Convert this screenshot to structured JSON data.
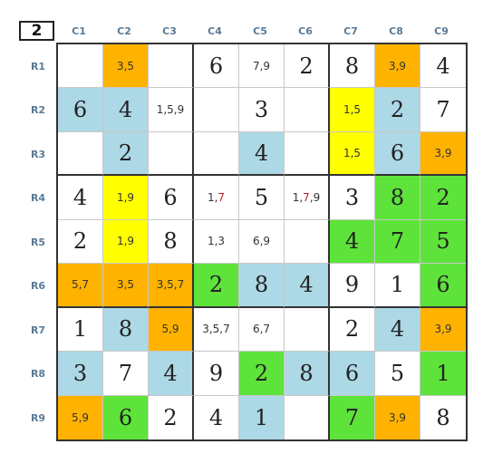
{
  "corner_label": "2",
  "columns": [
    "C1",
    "C2",
    "C3",
    "C4",
    "C5",
    "C6",
    "C7",
    "C8",
    "C9"
  ],
  "rows": [
    "R1",
    "R2",
    "R3",
    "R4",
    "R5",
    "R6",
    "R7",
    "R8",
    "R9"
  ],
  "colors": {
    "orange": "#ffb300",
    "yellow": "#ffff00",
    "blue": "#add8e6",
    "green": "#5de33a",
    "white": "#ffffff",
    "highlight_digit": "#cc1a1a"
  },
  "cells": [
    [
      {
        "c": "",
        "bg": "white"
      },
      {
        "c": "3,5",
        "bg": "orange"
      },
      {
        "c": "",
        "bg": "white"
      },
      {
        "v": "6",
        "bg": "white"
      },
      {
        "c": "7,9",
        "bg": "white"
      },
      {
        "v": "2",
        "bg": "white"
      },
      {
        "v": "8",
        "bg": "white"
      },
      {
        "c": "3,9",
        "bg": "orange"
      },
      {
        "v": "4",
        "bg": "white"
      }
    ],
    [
      {
        "v": "6",
        "bg": "blue"
      },
      {
        "v": "4",
        "bg": "blue"
      },
      {
        "c": "1,5,9",
        "bg": "white"
      },
      {
        "c": "",
        "bg": "white"
      },
      {
        "v": "3",
        "bg": "white"
      },
      {
        "c": "",
        "bg": "white"
      },
      {
        "c": "1,5",
        "bg": "yellow"
      },
      {
        "v": "2",
        "bg": "blue"
      },
      {
        "v": "7",
        "bg": "white"
      }
    ],
    [
      {
        "c": "",
        "bg": "white"
      },
      {
        "v": "2",
        "bg": "blue"
      },
      {
        "c": "",
        "bg": "white"
      },
      {
        "c": "",
        "bg": "white"
      },
      {
        "v": "4",
        "bg": "blue"
      },
      {
        "c": "",
        "bg": "white"
      },
      {
        "c": "1,5",
        "bg": "yellow"
      },
      {
        "v": "6",
        "bg": "blue"
      },
      {
        "c": "3,9",
        "bg": "orange"
      }
    ],
    [
      {
        "v": "4",
        "bg": "white"
      },
      {
        "c": "1,9",
        "bg": "yellow"
      },
      {
        "v": "6",
        "bg": "white"
      },
      {
        "c": "1,7",
        "bg": "white",
        "red": "7"
      },
      {
        "v": "5",
        "bg": "white"
      },
      {
        "c": "1,7,9",
        "bg": "white",
        "red": "7"
      },
      {
        "v": "3",
        "bg": "white"
      },
      {
        "v": "8",
        "bg": "green"
      },
      {
        "v": "2",
        "bg": "green"
      }
    ],
    [
      {
        "v": "2",
        "bg": "white"
      },
      {
        "c": "1,9",
        "bg": "yellow"
      },
      {
        "v": "8",
        "bg": "white"
      },
      {
        "c": "1,3",
        "bg": "white"
      },
      {
        "c": "6,9",
        "bg": "white"
      },
      {
        "c": "",
        "bg": "white"
      },
      {
        "v": "4",
        "bg": "green"
      },
      {
        "v": "7",
        "bg": "green"
      },
      {
        "v": "5",
        "bg": "green"
      }
    ],
    [
      {
        "c": "5,7",
        "bg": "orange"
      },
      {
        "c": "3,5",
        "bg": "orange"
      },
      {
        "c": "3,5,7",
        "bg": "orange"
      },
      {
        "v": "2",
        "bg": "green"
      },
      {
        "v": "8",
        "bg": "blue"
      },
      {
        "v": "4",
        "bg": "blue"
      },
      {
        "v": "9",
        "bg": "white"
      },
      {
        "v": "1",
        "bg": "white"
      },
      {
        "v": "6",
        "bg": "green"
      }
    ],
    [
      {
        "v": "1",
        "bg": "white"
      },
      {
        "v": "8",
        "bg": "blue"
      },
      {
        "c": "5,9",
        "bg": "orange"
      },
      {
        "c": "3,5,7",
        "bg": "white"
      },
      {
        "c": "6,7",
        "bg": "white"
      },
      {
        "c": "",
        "bg": "white"
      },
      {
        "v": "2",
        "bg": "white"
      },
      {
        "v": "4",
        "bg": "blue"
      },
      {
        "c": "3,9",
        "bg": "orange"
      }
    ],
    [
      {
        "v": "3",
        "bg": "blue"
      },
      {
        "v": "7",
        "bg": "white"
      },
      {
        "v": "4",
        "bg": "blue"
      },
      {
        "v": "9",
        "bg": "white"
      },
      {
        "v": "2",
        "bg": "green"
      },
      {
        "v": "8",
        "bg": "blue"
      },
      {
        "v": "6",
        "bg": "blue"
      },
      {
        "v": "5",
        "bg": "white"
      },
      {
        "v": "1",
        "bg": "green"
      }
    ],
    [
      {
        "c": "5,9",
        "bg": "orange"
      },
      {
        "v": "6",
        "bg": "green"
      },
      {
        "v": "2",
        "bg": "white"
      },
      {
        "v": "4",
        "bg": "white"
      },
      {
        "v": "1",
        "bg": "blue"
      },
      {
        "c": "",
        "bg": "white"
      },
      {
        "v": "7",
        "bg": "green"
      },
      {
        "c": "3,9",
        "bg": "orange"
      },
      {
        "v": "8",
        "bg": "white"
      }
    ]
  ]
}
